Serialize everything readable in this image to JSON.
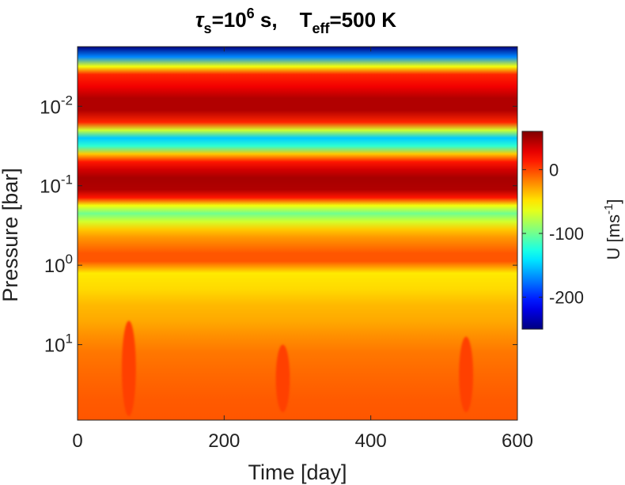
{
  "chart_data": {
    "type": "heatmap",
    "title": {
      "symbol": "τ",
      "symbol_sub": "s",
      "eq1": "=10",
      "exp": "6",
      "unit": " s,",
      "t_label": "T",
      "t_sub": "eff",
      "eq2": "=500 K"
    },
    "xlabel": "Time [day]",
    "ylabel": "Pressure [bar]",
    "xlim": [
      0,
      600
    ],
    "x_ticks": [
      {
        "value": 0,
        "label": "0"
      },
      {
        "value": 200,
        "label": "200"
      },
      {
        "value": 400,
        "label": "400"
      },
      {
        "value": 600,
        "label": "600"
      }
    ],
    "y_scale": "log",
    "y_direction": "reversed",
    "y_log_range": [
      -2.75,
      1.95
    ],
    "y_ticks": [
      {
        "log10": -2,
        "base": "10",
        "exp": "-2"
      },
      {
        "log10": -1,
        "base": "10",
        "exp": "-1"
      },
      {
        "log10": 0,
        "base": "10",
        "exp": "0"
      },
      {
        "log10": 1,
        "base": "10",
        "exp": "1"
      }
    ],
    "colorbar": {
      "label": "U [ms",
      "label_exp": "-1",
      "label_close": "]",
      "range": [
        -250,
        60
      ],
      "ticks": [
        {
          "value": 0,
          "label": "0"
        },
        {
          "value": -100,
          "label": "-100"
        },
        {
          "value": -200,
          "label": "-200"
        }
      ],
      "colormap": "jet"
    },
    "z_profile": [
      {
        "log10": -2.75,
        "u": -250
      },
      {
        "log10": -2.62,
        "u": -170
      },
      {
        "log10": -2.5,
        "u": -60
      },
      {
        "log10": -2.4,
        "u": 10
      },
      {
        "log10": -2.25,
        "u": 25
      },
      {
        "log10": -2.1,
        "u": 45
      },
      {
        "log10": -1.95,
        "u": 45
      },
      {
        "log10": -1.8,
        "u": 10
      },
      {
        "log10": -1.7,
        "u": -70
      },
      {
        "log10": -1.6,
        "u": -150
      },
      {
        "log10": -1.5,
        "u": -120
      },
      {
        "log10": -1.4,
        "u": -40
      },
      {
        "log10": -1.3,
        "u": 15
      },
      {
        "log10": -1.2,
        "u": 35
      },
      {
        "log10": -1.1,
        "u": 48
      },
      {
        "log10": -0.95,
        "u": 45
      },
      {
        "log10": -0.85,
        "u": 15
      },
      {
        "log10": -0.75,
        "u": -60
      },
      {
        "log10": -0.65,
        "u": -100
      },
      {
        "log10": -0.55,
        "u": -70
      },
      {
        "log10": -0.45,
        "u": -40
      },
      {
        "log10": -0.35,
        "u": -25
      },
      {
        "log10": -0.25,
        "u": -15
      },
      {
        "log10": -0.15,
        "u": -5
      },
      {
        "log10": -0.05,
        "u": -5
      },
      {
        "log10": 0.1,
        "u": -50
      },
      {
        "log10": 0.3,
        "u": -45
      },
      {
        "log10": 0.5,
        "u": -35
      },
      {
        "log10": 0.7,
        "u": -30
      },
      {
        "log10": 0.9,
        "u": -22
      },
      {
        "log10": 1.1,
        "u": -15
      },
      {
        "log10": 1.4,
        "u": -10
      },
      {
        "log10": 1.7,
        "u": -6
      },
      {
        "log10": 1.95,
        "u": -5
      }
    ],
    "jets": [
      {
        "day": 70,
        "log10_top": 0.7,
        "log10_bottom": 1.9,
        "u_peak": 2
      },
      {
        "day": 280,
        "log10_top": 1.0,
        "log10_bottom": 1.85,
        "u_peak": 2
      },
      {
        "day": 530,
        "log10_top": 0.9,
        "log10_bottom": 1.85,
        "u_peak": 2
      }
    ]
  }
}
